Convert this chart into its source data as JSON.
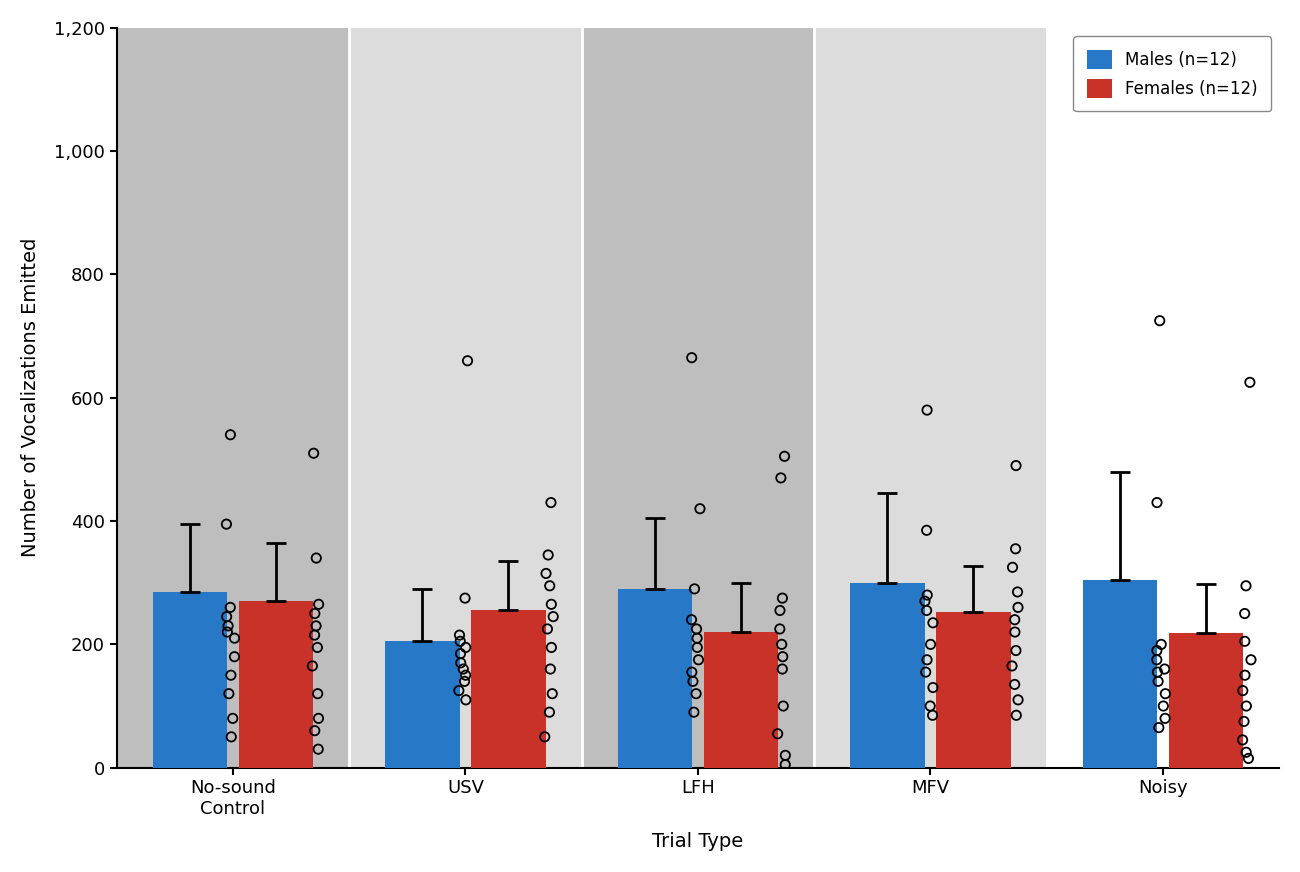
{
  "categories": [
    "No-sound\nControl",
    "USV",
    "LFH",
    "MFV",
    "Noisy"
  ],
  "male_means": [
    285,
    205,
    290,
    300,
    305
  ],
  "female_means": [
    270,
    255,
    220,
    252,
    218
  ],
  "male_sd": [
    110,
    85,
    115,
    145,
    175
  ],
  "female_sd": [
    95,
    80,
    80,
    75,
    80
  ],
  "male_color": "#2878C8",
  "female_color": "#C83228",
  "bar_width": 0.32,
  "ylim": [
    0,
    1200
  ],
  "yticks": [
    0,
    200,
    400,
    600,
    800,
    1000,
    1200
  ],
  "ylabel": "Number of Vocalizations Emitted",
  "xlabel": "Trial Type",
  "legend_labels": [
    "Males (n=12)",
    "Females (n=12)"
  ],
  "bg_colors": [
    "#BEBEBE",
    "#DCDCDC",
    "#BEBEBE",
    "#DCDCDC",
    "#FFFFFF"
  ],
  "outer_bg": "#F0F0F0",
  "male_points": [
    [
      50,
      80,
      120,
      150,
      180,
      210,
      220,
      230,
      245,
      260,
      395,
      540
    ],
    [
      110,
      125,
      140,
      150,
      160,
      170,
      185,
      195,
      205,
      215,
      275,
      660
    ],
    [
      90,
      120,
      140,
      155,
      175,
      195,
      210,
      225,
      240,
      290,
      420,
      665
    ],
    [
      85,
      100,
      130,
      155,
      175,
      200,
      235,
      255,
      270,
      280,
      385,
      580
    ],
    [
      65,
      80,
      100,
      120,
      140,
      155,
      160,
      175,
      190,
      200,
      430,
      725
    ]
  ],
  "female_points": [
    [
      30,
      60,
      80,
      120,
      165,
      195,
      215,
      230,
      250,
      265,
      340,
      510
    ],
    [
      50,
      90,
      120,
      160,
      195,
      225,
      245,
      265,
      295,
      315,
      345,
      430
    ],
    [
      5,
      20,
      55,
      100,
      160,
      180,
      200,
      225,
      255,
      275,
      470,
      505
    ],
    [
      85,
      110,
      135,
      165,
      190,
      220,
      240,
      260,
      285,
      325,
      355,
      490
    ],
    [
      15,
      25,
      45,
      75,
      100,
      125,
      150,
      175,
      205,
      250,
      295,
      625
    ]
  ],
  "axis_fontsize": 14,
  "tick_fontsize": 13,
  "legend_fontsize": 12
}
